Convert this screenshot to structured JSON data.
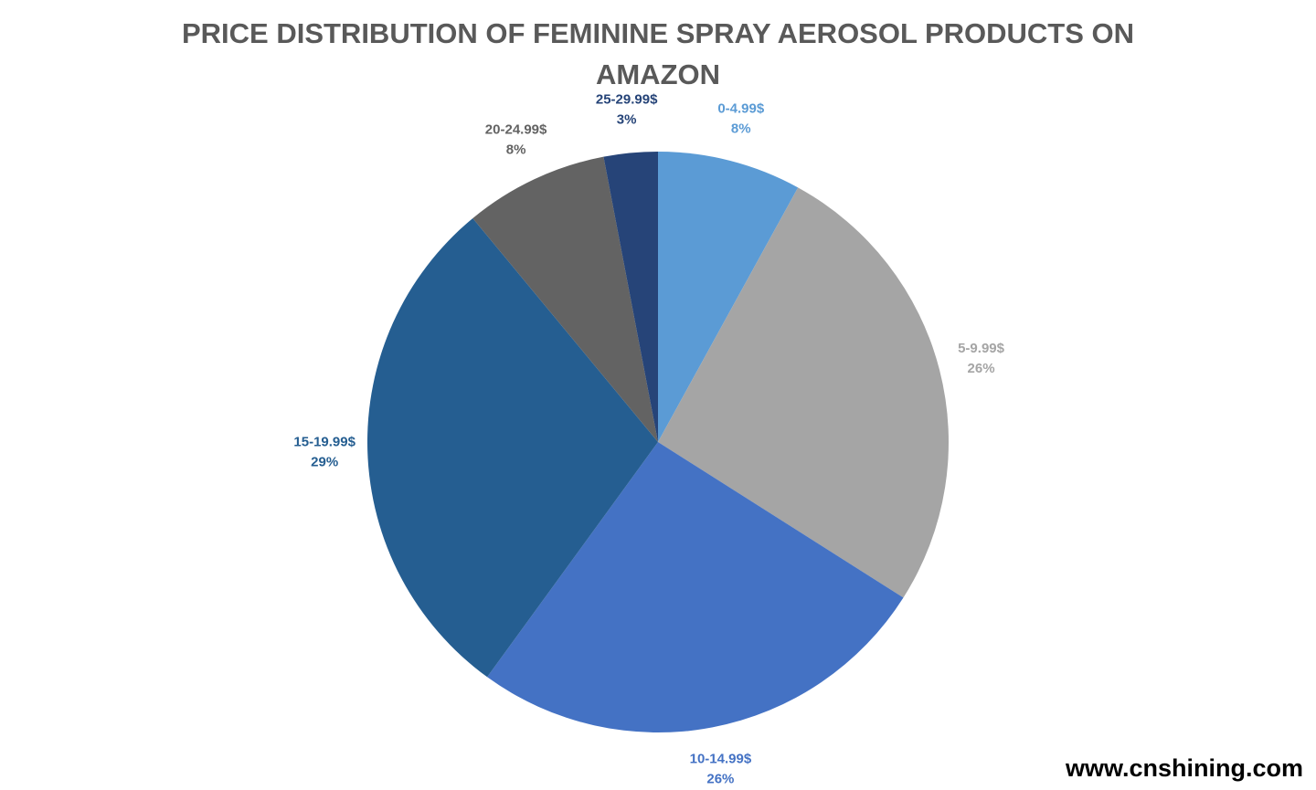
{
  "chart_data": {
    "type": "pie",
    "title": "PRICE DISTRIBUTION OF FEMININE SPRAY AEROSOL PRODUCTS ON AMAZON",
    "categories": [
      "0-4.99$",
      "5-9.99$",
      "10-14.99$",
      "15-19.99$",
      "20-24.99$",
      "25-29.99$"
    ],
    "values": [
      8,
      26,
      26,
      29,
      8,
      3
    ],
    "value_labels": [
      "8%",
      "26%",
      "26%",
      "29%",
      "8%",
      "3%"
    ],
    "colors": [
      "#5b9bd5",
      "#a5a5a5",
      "#4472c4",
      "#255e91",
      "#636363",
      "#264478"
    ],
    "watermark": "www.cnshining.com"
  }
}
